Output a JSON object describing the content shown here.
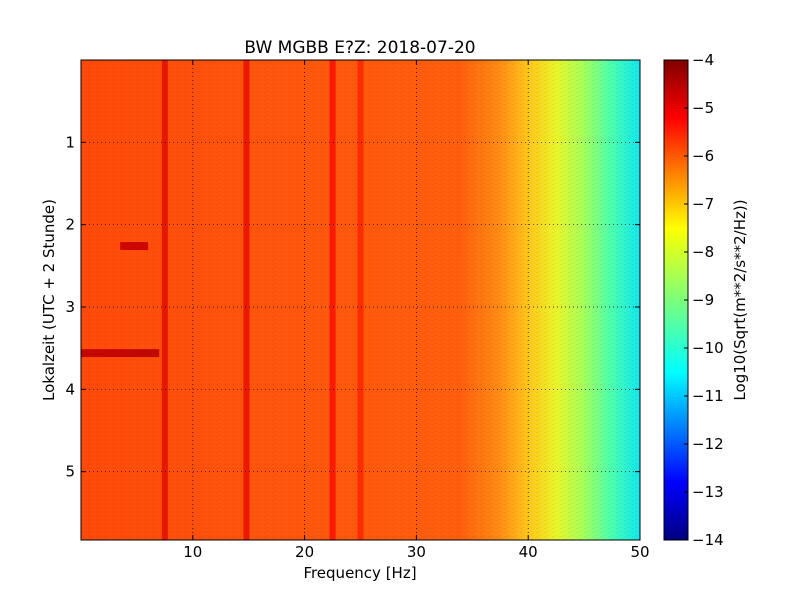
{
  "chart_data": {
    "type": "heatmap",
    "title": "BW MGBB E?Z: 2018-07-20",
    "xlabel": "Frequency [Hz]",
    "ylabel": "Lokalzeit (UTC + 2 Stunde)",
    "xlim": [
      0,
      50
    ],
    "ylim": [
      0,
      5.83
    ],
    "y_inverted": true,
    "x_ticks": [
      10,
      20,
      30,
      40,
      50
    ],
    "x_tick_labels": [
      "10",
      "20",
      "30",
      "40",
      "50"
    ],
    "y_ticks": [
      1,
      2,
      3,
      4,
      5
    ],
    "y_tick_labels": [
      "1",
      "2",
      "3",
      "4",
      "5"
    ],
    "grid": true,
    "colormap": "jet",
    "colorbar": {
      "label": "Log10(Sqrt(m**2/s**2/Hz))",
      "range": [
        -14,
        -4
      ],
      "ticks": [
        -4,
        -5,
        -6,
        -7,
        -8,
        -9,
        -10,
        -11,
        -12,
        -13,
        -14
      ],
      "tick_labels": [
        "−4",
        "−5",
        "−6",
        "−7",
        "−8",
        "−9",
        "−10",
        "−11",
        "−12",
        "−13",
        "−14"
      ]
    },
    "spectrum_profile": {
      "frequency_hz": [
        0,
        35,
        38,
        40,
        42,
        44,
        46,
        48,
        50
      ],
      "level": [
        -5.8,
        -6.0,
        -6.5,
        -7.0,
        -7.6,
        -8.2,
        -8.7,
        -9.4,
        -10.0
      ]
    },
    "spectral_lines": [
      {
        "frequency_hz": 7.5,
        "level": -4.9
      },
      {
        "frequency_hz": 14.8,
        "level": -5.0
      },
      {
        "frequency_hz": 22.5,
        "level": -5.2
      },
      {
        "frequency_hz": 25.0,
        "level": -5.5
      }
    ],
    "noise_bursts": [
      {
        "time_h": 3.56,
        "frequency_range_hz": [
          0,
          7
        ],
        "level": -4.6
      },
      {
        "time_h": 2.26,
        "frequency_range_hz": [
          3.5,
          6
        ],
        "level": -4.7
      }
    ]
  }
}
